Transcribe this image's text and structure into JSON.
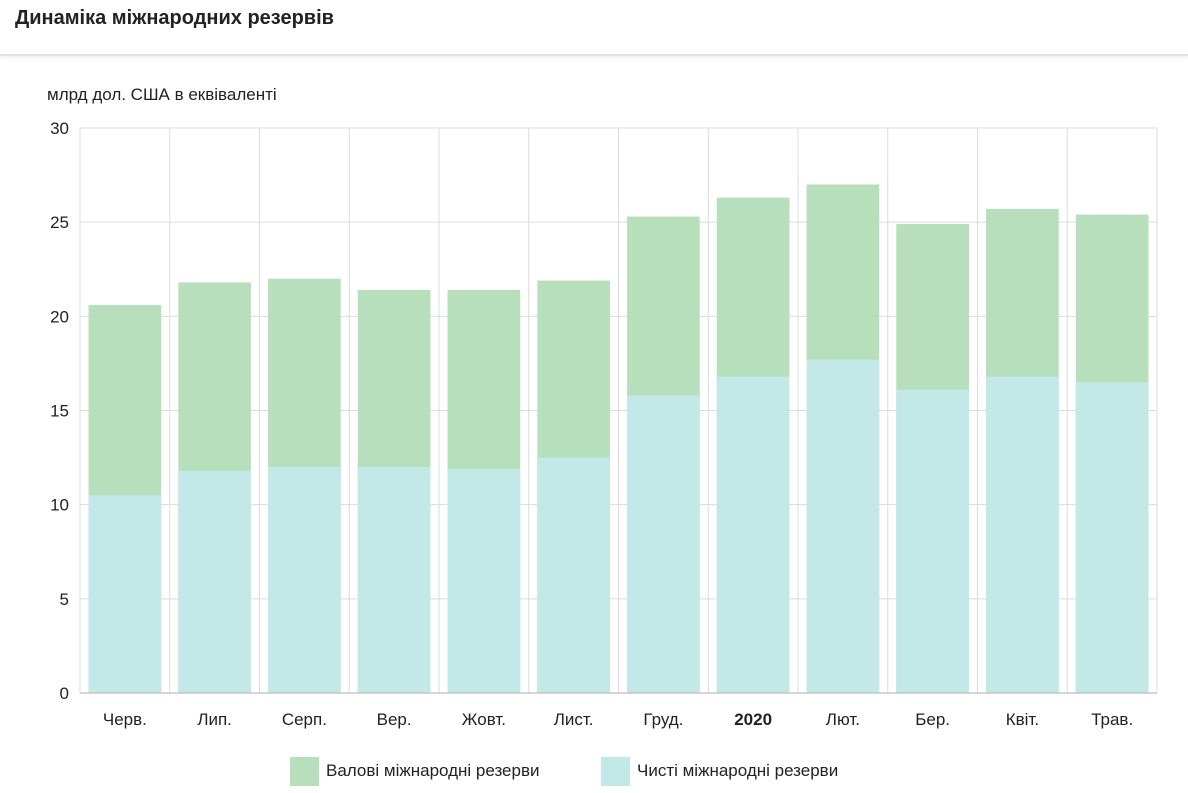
{
  "page": {
    "title": "Динаміка міжнародних резервів"
  },
  "chart_data": {
    "type": "bar",
    "stacked": false,
    "title": "Динаміка міжнародних резервів",
    "ylabel": "млрд дол. США в еквіваленті",
    "xlabel": "",
    "ylim": [
      0,
      30
    ],
    "yticks": [
      0,
      5,
      10,
      15,
      20,
      25,
      30
    ],
    "grid": true,
    "legend_position": "bottom",
    "categories": [
      "Черв.",
      "Лип.",
      "Серп.",
      "Вер.",
      "Жовт.",
      "Лист.",
      "Груд.",
      "2020",
      "Лют.",
      "Бер.",
      "Квіт.",
      "Трав."
    ],
    "bold_categories": [
      "2020"
    ],
    "series": [
      {
        "name": "Валові міжнародні резерви",
        "color": "#b8dfbb",
        "values": [
          20.6,
          21.8,
          22.0,
          21.4,
          21.4,
          21.9,
          25.3,
          26.3,
          27.0,
          24.9,
          25.7,
          25.4
        ]
      },
      {
        "name": "Чисті міжнародні резерви",
        "color": "#c3e8e8",
        "values": [
          10.5,
          11.8,
          12.0,
          12.0,
          11.9,
          12.5,
          15.8,
          16.8,
          17.7,
          16.1,
          16.8,
          16.5
        ]
      }
    ]
  }
}
